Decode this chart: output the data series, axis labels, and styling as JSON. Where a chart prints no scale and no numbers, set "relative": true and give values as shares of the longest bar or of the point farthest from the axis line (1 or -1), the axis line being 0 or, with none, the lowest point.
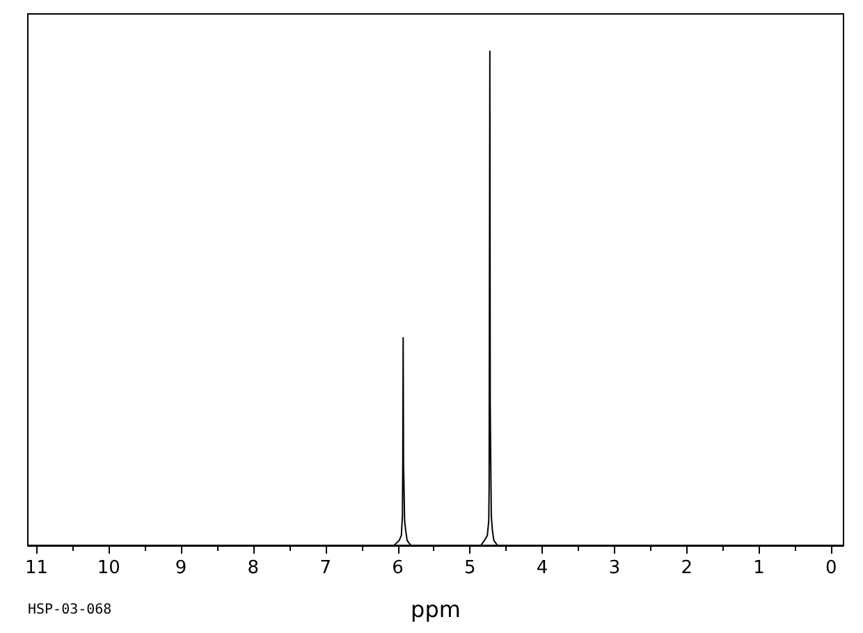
{
  "chart_data": {
    "type": "line",
    "relative": true,
    "xlabel": "ppm",
    "marker": "none",
    "line_style": "solid",
    "grid": false,
    "xlim": [
      11.12,
      -0.17
    ],
    "xticks": [
      11,
      {
        "value": 10.5,
        "label": null
      },
      10,
      {
        "value": 9.5,
        "label": null
      },
      9,
      {
        "value": 8.5,
        "label": null
      },
      8,
      {
        "value": 7.5,
        "label": null
      },
      7,
      {
        "value": 6.5,
        "label": null
      },
      6,
      {
        "value": 5.5,
        "label": null
      },
      5,
      {
        "value": 4.5,
        "label": null
      },
      4,
      {
        "value": 3.5,
        "label": null
      },
      3,
      {
        "value": 2.5,
        "label": null
      },
      2,
      {
        "value": 1.5,
        "label": null
      },
      1,
      {
        "value": 0.5,
        "label": null
      },
      0
    ],
    "series": [
      {
        "color": "#000000",
        "x": [
          11.12,
          6.05,
          5.98,
          5.95,
          5.935,
          5.93,
          5.925,
          5.92,
          5.915,
          5.905,
          5.89,
          5.87,
          5.82,
          4.85,
          4.8,
          4.76,
          4.74,
          4.735,
          4.725,
          4.72,
          4.715,
          4.705,
          4.69,
          4.67,
          4.62,
          -0.17
        ],
        "values": [
          0,
          0,
          0.01,
          0.02,
          0.06,
          0.17,
          0.42,
          0.16,
          0.13,
          0.05,
          0.03,
          0.01,
          0,
          0,
          0.01,
          0.02,
          0.05,
          0.12,
          1,
          0.29,
          0.2,
          0.06,
          0.03,
          0.01,
          0,
          0
        ]
      }
    ],
    "annotations": [
      "HSP-03-068"
    ]
  }
}
